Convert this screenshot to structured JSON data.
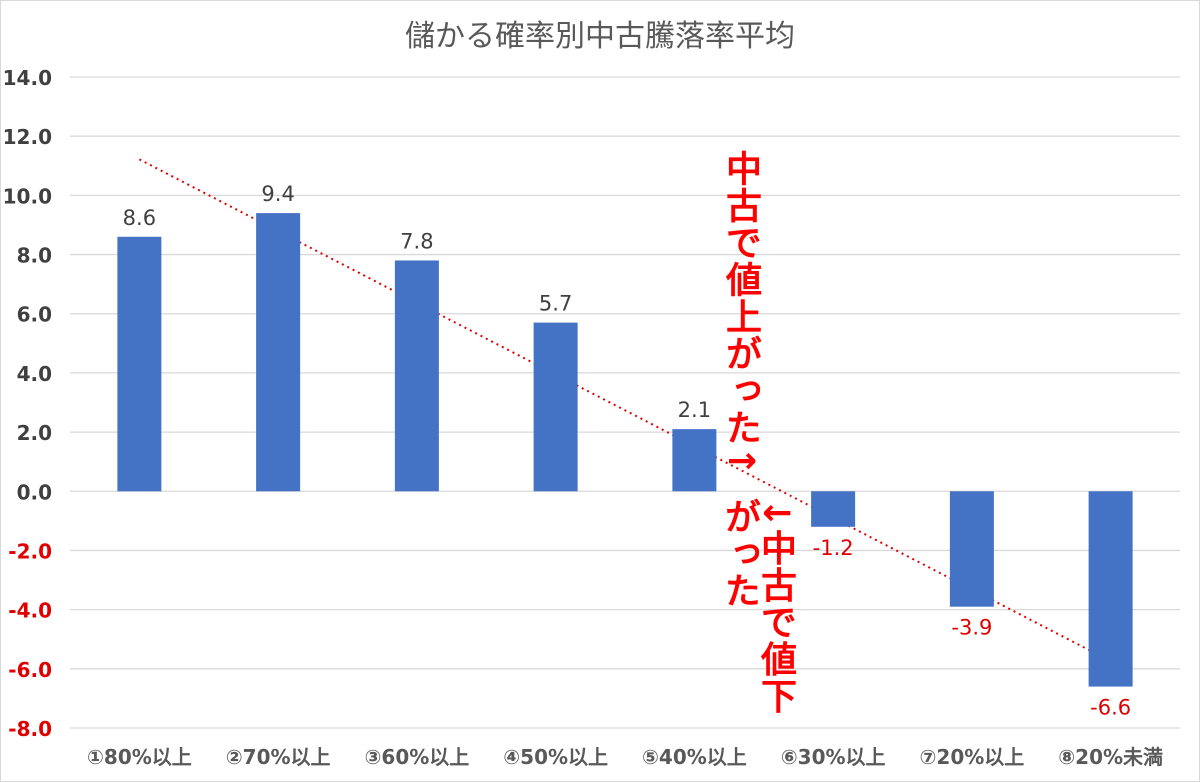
{
  "chart_data": {
    "type": "bar",
    "title": "儲かる確率別中古騰落率平均",
    "categories": [
      "①80%以上",
      "②70%以上",
      "③60%以上",
      "④50%以上",
      "⑤40%以上",
      "⑥30%以上",
      "⑦20%以上",
      "⑧20%未満"
    ],
    "values": [
      8.6,
      9.4,
      7.8,
      5.7,
      2.1,
      -1.2,
      -3.9,
      -6.6
    ],
    "data_labels": [
      "8.6",
      "9.4",
      "7.8",
      "5.7",
      "2.1",
      "-1.2",
      "-3.9",
      "-6.6"
    ],
    "ylim": [
      -8,
      14
    ],
    "yticks": [
      "14.0",
      "12.0",
      "10.0",
      "8.0",
      "6.0",
      "4.0",
      "2.0",
      "0.0",
      "-2.0",
      "-4.0",
      "-6.0",
      "-8.0"
    ],
    "ytick_values": [
      14,
      12,
      10,
      8,
      6,
      4,
      2,
      0,
      -2,
      -4,
      -6,
      -8
    ],
    "grid": true,
    "trendline": "linear",
    "colors": {
      "bar": "#4472c4",
      "trendline": "#e00000",
      "negative_label": "#e00000",
      "positive_label": "#404040",
      "grid": "#d9d9d9"
    }
  },
  "annotations": {
    "up": "中古で値上がった↑",
    "down": "↓中古で値下がった"
  }
}
